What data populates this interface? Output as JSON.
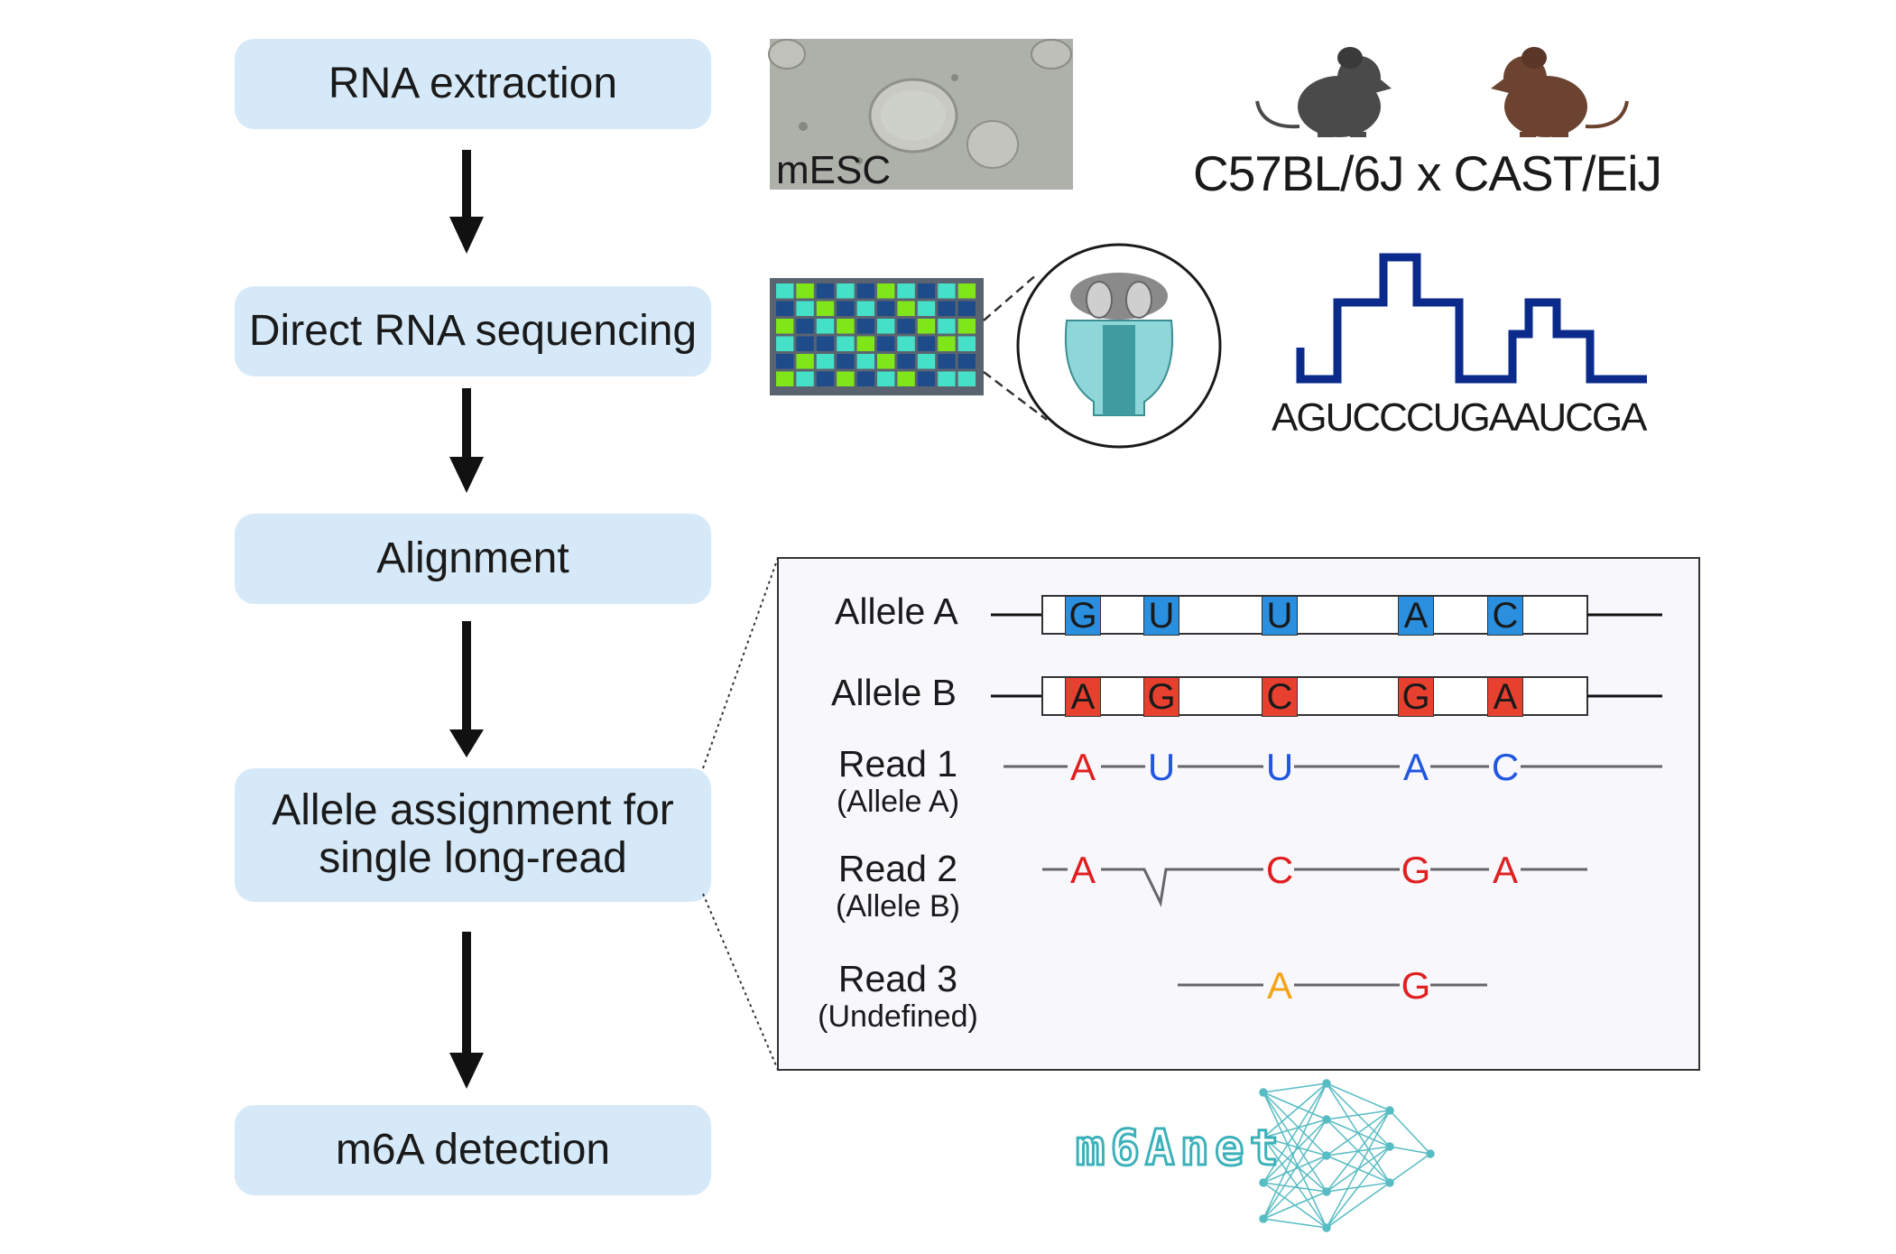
{
  "steps": [
    {
      "label": "RNA extraction"
    },
    {
      "label": "Direct RNA sequencing"
    },
    {
      "label": "Alignment"
    },
    {
      "label": "Allele assignment for single long-read"
    },
    {
      "label": "m6A detection"
    }
  ],
  "cells": {
    "label": "mESC"
  },
  "cross": {
    "label": "C57BL/6J x CAST/EiJ"
  },
  "signal": {
    "sequence": "AGUCCCUGAAUCGA"
  },
  "alignment": {
    "allele_a": {
      "label": "Allele A",
      "bases": [
        "G",
        "U",
        "U",
        "A",
        "C"
      ]
    },
    "allele_b": {
      "label": "Allele B",
      "bases": [
        "A",
        "G",
        "C",
        "G",
        "A"
      ]
    },
    "read1": {
      "label": "Read 1",
      "sub": "(Allele A)",
      "bases": [
        "A",
        "U",
        "U",
        "A",
        "C"
      ]
    },
    "read2": {
      "label": "Read 2",
      "sub": "(Allele B)",
      "bases": [
        "A",
        "C",
        "G",
        "A"
      ]
    },
    "read3": {
      "label": "Read 3",
      "sub": "(Undefined)",
      "bases": [
        "A",
        "G"
      ]
    }
  },
  "logo": {
    "text": "m6Anet"
  },
  "colors": {
    "step_fill": "#d6e9f8",
    "allele_a": "#2b8fe0",
    "allele_b": "#e8402f",
    "base_blue": "#2156e3",
    "base_red": "#e02020",
    "base_orange": "#f5a418",
    "signal_line": "#0a2a8c",
    "mouse_black": "#4a4a4a",
    "mouse_brown": "#6b4330",
    "logo": "#3bb1b9"
  }
}
